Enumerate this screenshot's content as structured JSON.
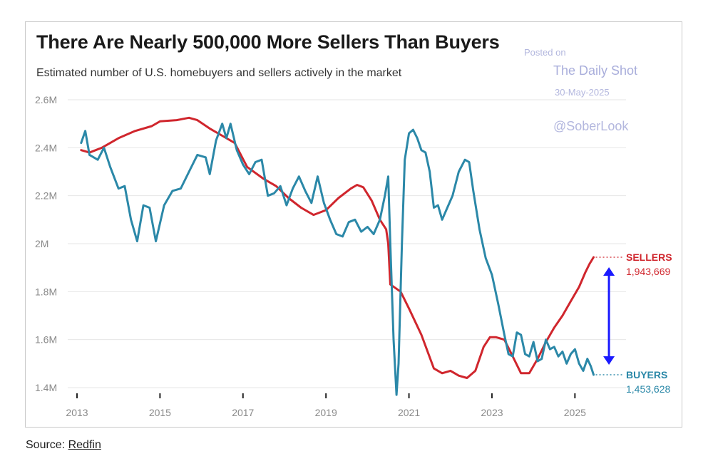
{
  "chart_data": {
    "type": "line",
    "title": "There Are Nearly 500,000 More Sellers Than Buyers",
    "subtitle": "Estimated number of U.S. homebuyers and sellers actively in the market",
    "xlabel": "",
    "ylabel": "",
    "xlim": [
      2013,
      2025.75
    ],
    "ylim": [
      1400000,
      2600000
    ],
    "x_ticks": [
      2013,
      2015,
      2017,
      2019,
      2021,
      2023,
      2025
    ],
    "x_tick_labels": [
      "2013",
      "2015",
      "2017",
      "2019",
      "2021",
      "2023",
      "2025"
    ],
    "y_ticks": [
      1400000,
      1600000,
      1800000,
      2000000,
      2200000,
      2400000,
      2600000
    ],
    "y_tick_labels": [
      "1.4M",
      "1.6M",
      "1.8M",
      "2M",
      "2.2M",
      "2.4M",
      "2.6M"
    ],
    "grid": true,
    "series": [
      {
        "name": "SELLERS",
        "color": "#d0262d",
        "end_value_label": "1,943,669",
        "points": [
          [
            2013.1,
            2390000
          ],
          [
            2013.3,
            2380000
          ],
          [
            2013.6,
            2400000
          ],
          [
            2014.0,
            2440000
          ],
          [
            2014.4,
            2470000
          ],
          [
            2014.8,
            2490000
          ],
          [
            2015.0,
            2510000
          ],
          [
            2015.4,
            2515000
          ],
          [
            2015.7,
            2525000
          ],
          [
            2015.9,
            2515000
          ],
          [
            2016.2,
            2480000
          ],
          [
            2016.5,
            2450000
          ],
          [
            2016.8,
            2420000
          ],
          [
            2017.1,
            2320000
          ],
          [
            2017.5,
            2270000
          ],
          [
            2017.8,
            2240000
          ],
          [
            2018.1,
            2190000
          ],
          [
            2018.4,
            2150000
          ],
          [
            2018.7,
            2120000
          ],
          [
            2019.0,
            2140000
          ],
          [
            2019.3,
            2190000
          ],
          [
            2019.6,
            2230000
          ],
          [
            2019.75,
            2245000
          ],
          [
            2019.9,
            2235000
          ],
          [
            2020.1,
            2180000
          ],
          [
            2020.3,
            2100000
          ],
          [
            2020.45,
            2060000
          ],
          [
            2020.5,
            2000000
          ],
          [
            2020.55,
            1830000
          ],
          [
            2020.8,
            1800000
          ],
          [
            2021.0,
            1730000
          ],
          [
            2021.3,
            1620000
          ],
          [
            2021.6,
            1480000
          ],
          [
            2021.8,
            1460000
          ],
          [
            2022.0,
            1470000
          ],
          [
            2022.2,
            1450000
          ],
          [
            2022.4,
            1440000
          ],
          [
            2022.6,
            1470000
          ],
          [
            2022.8,
            1570000
          ],
          [
            2022.95,
            1610000
          ],
          [
            2023.1,
            1610000
          ],
          [
            2023.3,
            1600000
          ],
          [
            2023.5,
            1530000
          ],
          [
            2023.7,
            1460000
          ],
          [
            2023.9,
            1460000
          ],
          [
            2024.1,
            1520000
          ],
          [
            2024.3,
            1590000
          ],
          [
            2024.5,
            1650000
          ],
          [
            2024.7,
            1700000
          ],
          [
            2024.9,
            1760000
          ],
          [
            2025.1,
            1820000
          ],
          [
            2025.25,
            1880000
          ],
          [
            2025.35,
            1915000
          ],
          [
            2025.45,
            1943669
          ]
        ]
      },
      {
        "name": "BUYERS",
        "color": "#2b88a8",
        "end_value_label": "1,453,628",
        "points": [
          [
            2013.1,
            2420000
          ],
          [
            2013.2,
            2470000
          ],
          [
            2013.3,
            2370000
          ],
          [
            2013.5,
            2350000
          ],
          [
            2013.65,
            2400000
          ],
          [
            2013.8,
            2320000
          ],
          [
            2014.0,
            2230000
          ],
          [
            2014.15,
            2240000
          ],
          [
            2014.3,
            2100000
          ],
          [
            2014.45,
            2010000
          ],
          [
            2014.6,
            2160000
          ],
          [
            2014.75,
            2150000
          ],
          [
            2014.9,
            2010000
          ],
          [
            2015.1,
            2160000
          ],
          [
            2015.3,
            2220000
          ],
          [
            2015.5,
            2230000
          ],
          [
            2015.7,
            2300000
          ],
          [
            2015.9,
            2370000
          ],
          [
            2016.1,
            2360000
          ],
          [
            2016.2,
            2290000
          ],
          [
            2016.35,
            2430000
          ],
          [
            2016.5,
            2500000
          ],
          [
            2016.6,
            2440000
          ],
          [
            2016.7,
            2500000
          ],
          [
            2016.85,
            2390000
          ],
          [
            2017.0,
            2330000
          ],
          [
            2017.15,
            2290000
          ],
          [
            2017.3,
            2340000
          ],
          [
            2017.45,
            2350000
          ],
          [
            2017.6,
            2200000
          ],
          [
            2017.75,
            2210000
          ],
          [
            2017.9,
            2240000
          ],
          [
            2018.05,
            2160000
          ],
          [
            2018.2,
            2230000
          ],
          [
            2018.35,
            2280000
          ],
          [
            2018.5,
            2220000
          ],
          [
            2018.65,
            2170000
          ],
          [
            2018.8,
            2280000
          ],
          [
            2018.95,
            2170000
          ],
          [
            2019.1,
            2100000
          ],
          [
            2019.25,
            2040000
          ],
          [
            2019.4,
            2030000
          ],
          [
            2019.55,
            2090000
          ],
          [
            2019.7,
            2100000
          ],
          [
            2019.85,
            2050000
          ],
          [
            2020.0,
            2070000
          ],
          [
            2020.15,
            2040000
          ],
          [
            2020.3,
            2100000
          ],
          [
            2020.42,
            2200000
          ],
          [
            2020.5,
            2280000
          ],
          [
            2020.55,
            2000000
          ],
          [
            2020.63,
            1600000
          ],
          [
            2020.7,
            1370000
          ],
          [
            2020.75,
            1500000
          ],
          [
            2020.83,
            2000000
          ],
          [
            2020.9,
            2350000
          ],
          [
            2021.0,
            2460000
          ],
          [
            2021.1,
            2475000
          ],
          [
            2021.2,
            2440000
          ],
          [
            2021.3,
            2390000
          ],
          [
            2021.4,
            2380000
          ],
          [
            2021.5,
            2300000
          ],
          [
            2021.6,
            2150000
          ],
          [
            2021.7,
            2160000
          ],
          [
            2021.8,
            2100000
          ],
          [
            2021.9,
            2140000
          ],
          [
            2022.05,
            2200000
          ],
          [
            2022.2,
            2300000
          ],
          [
            2022.35,
            2350000
          ],
          [
            2022.45,
            2340000
          ],
          [
            2022.55,
            2220000
          ],
          [
            2022.7,
            2060000
          ],
          [
            2022.85,
            1940000
          ],
          [
            2023.0,
            1870000
          ],
          [
            2023.15,
            1750000
          ],
          [
            2023.3,
            1620000
          ],
          [
            2023.4,
            1540000
          ],
          [
            2023.5,
            1530000
          ],
          [
            2023.6,
            1630000
          ],
          [
            2023.7,
            1620000
          ],
          [
            2023.8,
            1540000
          ],
          [
            2023.9,
            1530000
          ],
          [
            2024.0,
            1590000
          ],
          [
            2024.1,
            1510000
          ],
          [
            2024.2,
            1520000
          ],
          [
            2024.3,
            1600000
          ],
          [
            2024.4,
            1560000
          ],
          [
            2024.5,
            1570000
          ],
          [
            2024.6,
            1530000
          ],
          [
            2024.7,
            1550000
          ],
          [
            2024.8,
            1500000
          ],
          [
            2024.9,
            1540000
          ],
          [
            2025.0,
            1560000
          ],
          [
            2025.1,
            1500000
          ],
          [
            2025.2,
            1470000
          ],
          [
            2025.3,
            1520000
          ],
          [
            2025.38,
            1490000
          ],
          [
            2025.45,
            1453628
          ]
        ]
      }
    ],
    "annotations": {
      "gap_arrow": {
        "x": 2025.82,
        "from": 1943669,
        "to": 1453628,
        "color": "#1a1aff"
      }
    }
  },
  "watermark": {
    "posted": "Posted on",
    "brand": "The Daily Shot",
    "date": "30-May-2025",
    "handle": "@SoberLook"
  },
  "footer": {
    "source_label": "Source: ",
    "source_link": "Redfin"
  }
}
